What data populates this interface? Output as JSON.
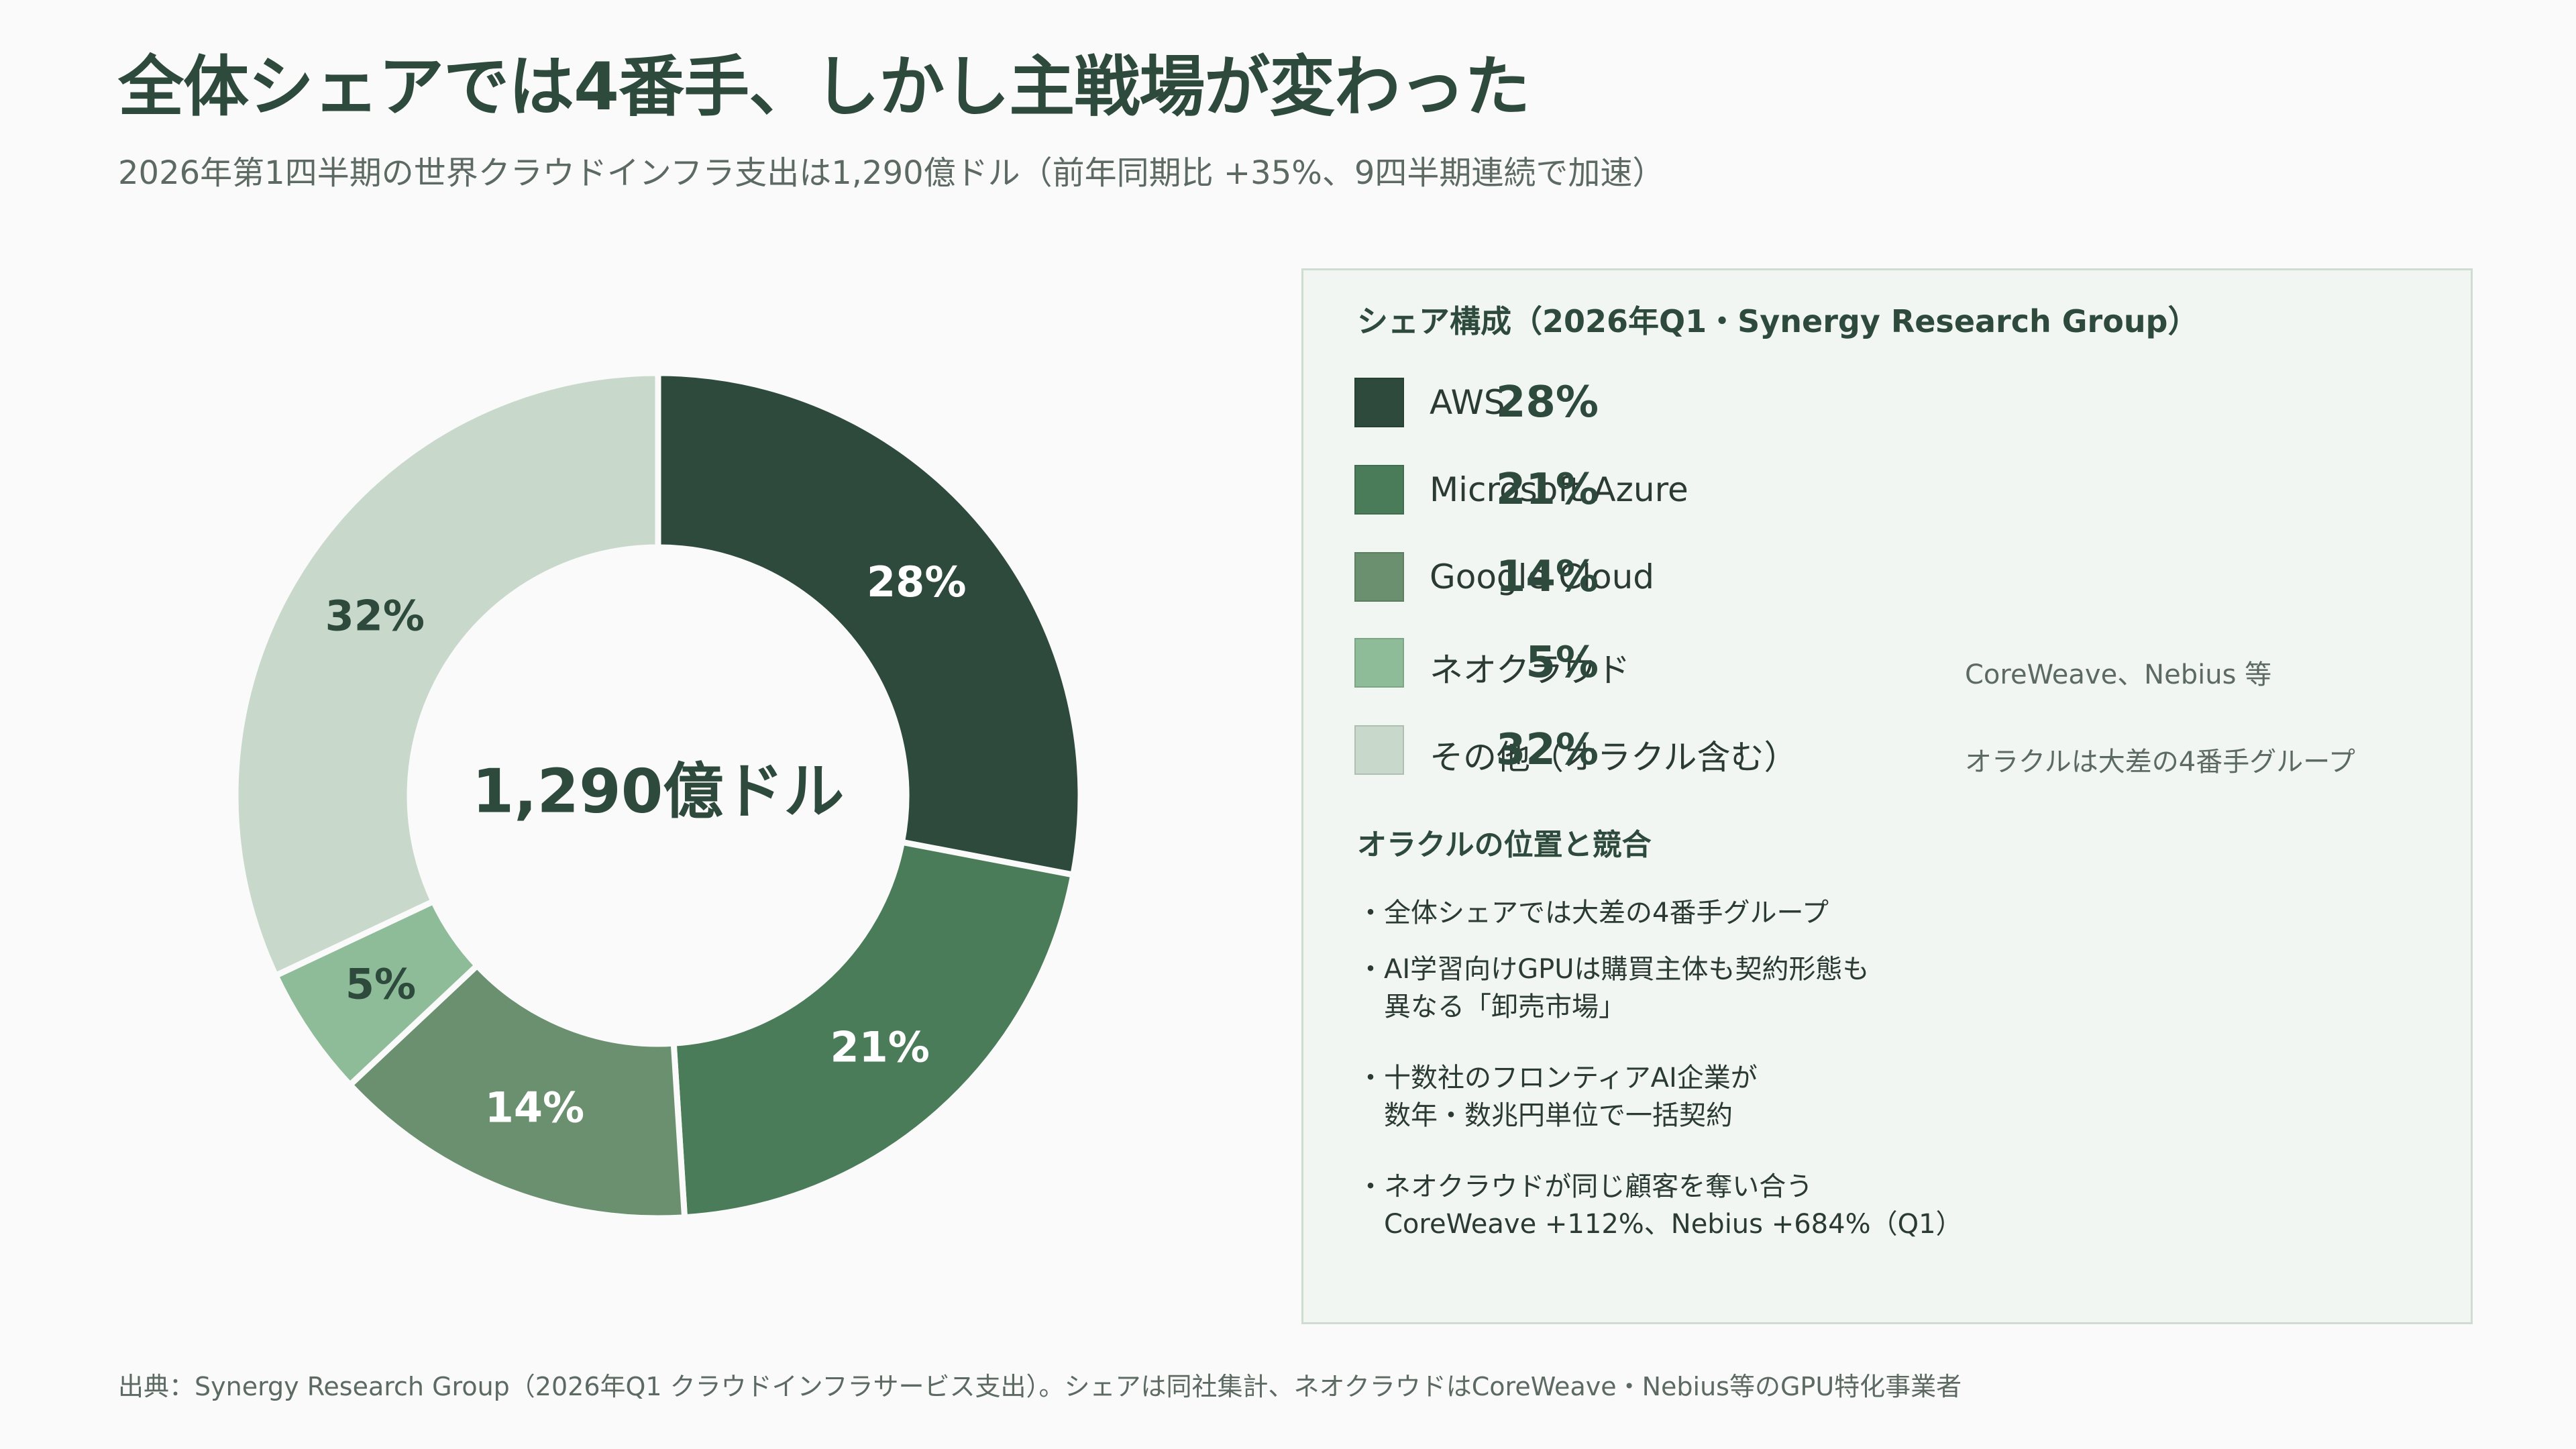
{
  "title": "全体シェアでは4番手、しかし主戦場が変わった",
  "subtitle": "2026年第1四半期の世界クラウドインフラ支出は1,290億ドル（前年同期比 +35%、9四半期連続で加速）",
  "center_label": "1,290億ドル",
  "panel": {
    "heading": "シェア構成（2026年Q1・Synergy Research Group）",
    "section_heading": "オラクルの位置と競合",
    "bullets": [
      {
        "line1": "・全体シェアでは大差の4番手グループ",
        "line2": ""
      },
      {
        "line1": "・AI学習向けGPUは購買主体も契約形態も",
        "line2": "異なる「卸売市場」"
      },
      {
        "line1": "・十数社のフロンティアAI企業が",
        "line2": "数年・数兆円単位で一括契約"
      },
      {
        "line1": "・ネオクラウドが同じ顧客を奪い合う",
        "line2": "CoreWeave +112%、Nebius +684%（Q1）"
      }
    ]
  },
  "chart_data": {
    "type": "pie",
    "categories": [
      "AWS",
      "Microsoft Azure",
      "Google Cloud",
      "ネオクラウド",
      "その他（オラクル含む）"
    ],
    "values": [
      28,
      21,
      14,
      5,
      32
    ],
    "value_labels": [
      "28%",
      "21%",
      "14%",
      "5%",
      "32%"
    ],
    "colors": [
      "#2d4a3c",
      "#4a7c59",
      "#6b9070",
      "#8fbc98",
      "#c8d9cc"
    ],
    "label_colors": [
      "#ffffff",
      "#ffffff",
      "#ffffff",
      "#2d4a3c",
      "#2d4a3c"
    ],
    "notes": [
      "",
      "",
      "",
      "CoreWeave、Nebius 等",
      "オラクルは大差の4番手グループ"
    ],
    "unit": "%",
    "legend_position": "right",
    "donut": true
  },
  "source": "出典：Synergy Research Group（2026年Q1 クラウドインフラサービス支出）。シェアは同社集計、ネオクラウドはCoreWeave・Nebius等のGPU特化事業者"
}
